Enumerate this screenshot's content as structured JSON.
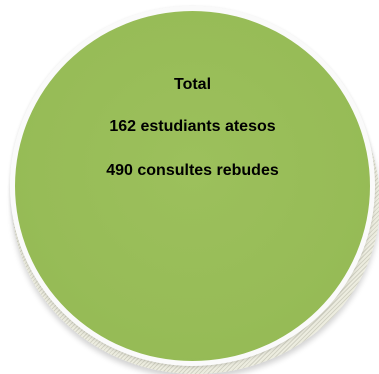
{
  "badge": {
    "title": "Total",
    "students": "162 estudiants atesos",
    "queries": "490 consultes rebudes"
  },
  "colors": {
    "circle_fill": "#97bc57",
    "circle_border": "#fafafa",
    "text": "#000000"
  }
}
